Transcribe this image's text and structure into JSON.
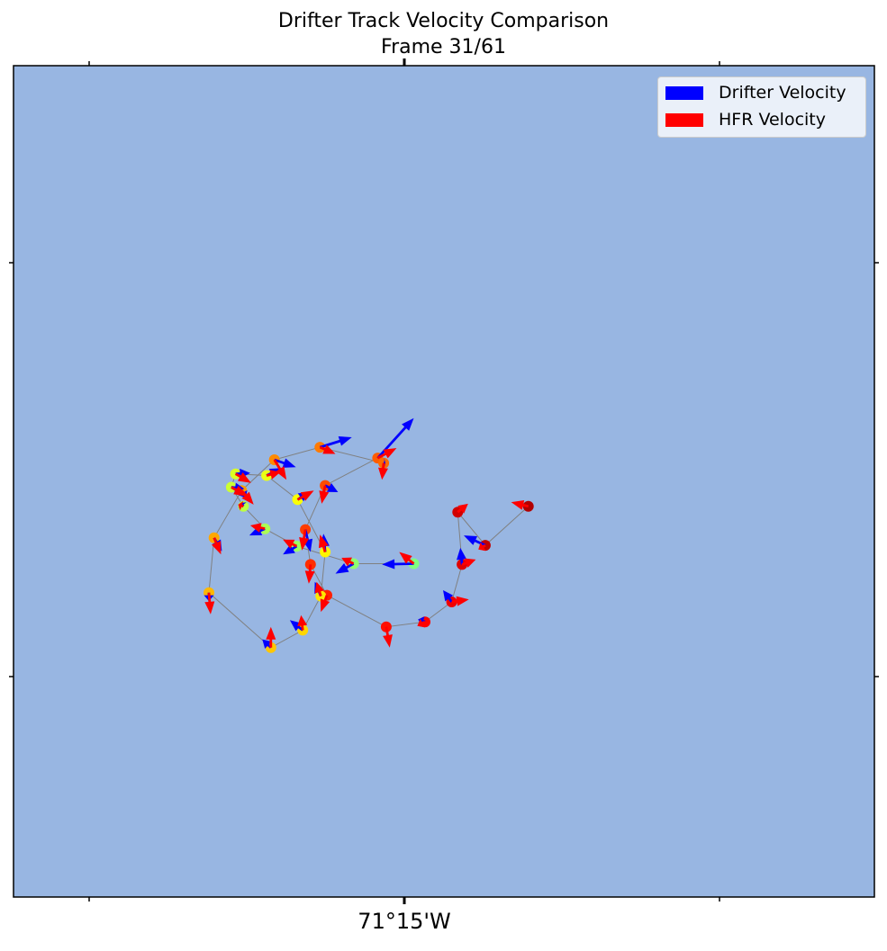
{
  "figure": {
    "title": "Drifter Track Velocity Comparison",
    "subtitle": "Frame 31/61",
    "xtick_label": "71°15'W",
    "ocean_color": "#98b6e2",
    "track_line_color": "#808080"
  },
  "legend": {
    "placement": "top-right",
    "items": [
      {
        "label": "Drifter Velocity",
        "color": "#0000ff"
      },
      {
        "label": "HFR Velocity",
        "color": "#ff0000"
      }
    ]
  },
  "chart_data": {
    "type": "scatter",
    "title": "Drifter Track Velocity Comparison",
    "subtitle": "Frame 31/61",
    "xlabel": "",
    "ylabel": "",
    "grid": false,
    "frame_current": 31,
    "frame_total": 61,
    "colormap": "jet",
    "track": [
      {
        "i": 0,
        "x": 0.598,
        "y": 0.53,
        "u_d": 0,
        "v_d": 0,
        "u_h": -0.02,
        "v_h": -0.005
      },
      {
        "i": 1,
        "x": 0.548,
        "y": 0.577,
        "u_d": -0.025,
        "v_d": -0.012,
        "u_h": -0.008,
        "v_h": 0.005
      },
      {
        "i": 2,
        "x": 0.516,
        "y": 0.537,
        "u_d": 0,
        "v_d": 0,
        "u_h": 0.012,
        "v_h": -0.01
      },
      {
        "i": 3,
        "x": 0.521,
        "y": 0.6,
        "u_d": -0.002,
        "v_d": -0.02,
        "u_h": 0.016,
        "v_h": -0.006
      },
      {
        "i": 4,
        "x": 0.509,
        "y": 0.645,
        "u_d": -0.01,
        "v_d": -0.014,
        "u_h": 0.02,
        "v_h": -0.003
      },
      {
        "i": 5,
        "x": 0.478,
        "y": 0.669,
        "u_d": -0.008,
        "v_d": -0.003,
        "u_h": -0.009,
        "v_h": 0.005
      },
      {
        "i": 6,
        "x": 0.433,
        "y": 0.675,
        "u_d": 0,
        "v_d": 0,
        "u_h": 0.004,
        "v_h": 0.025
      },
      {
        "i": 7,
        "x": 0.364,
        "y": 0.637,
        "u_d": 0,
        "v_d": 0,
        "u_h": -0.007,
        "v_h": 0.02
      },
      {
        "i": 8,
        "x": 0.345,
        "y": 0.6,
        "u_d": 0,
        "v_d": 0,
        "u_h": -0.002,
        "v_h": 0.023
      },
      {
        "i": 9,
        "x": 0.339,
        "y": 0.558,
        "u_d": 0.006,
        "v_d": 0.027,
        "u_h": -0.004,
        "v_h": 0.025
      },
      {
        "i": 10,
        "x": 0.362,
        "y": 0.505,
        "u_d": 0.015,
        "v_d": 0.008,
        "u_h": -0.004,
        "v_h": 0.022
      },
      {
        "i": 11,
        "x": 0.423,
        "y": 0.472,
        "u_d": 0.042,
        "v_d": -0.048,
        "u_h": 0.022,
        "v_h": -0.012
      },
      {
        "i": 12,
        "x": 0.43,
        "y": 0.478,
        "u_d": 0.002,
        "v_d": 0,
        "u_h": -0.002,
        "v_h": 0.02
      },
      {
        "i": 13,
        "x": 0.356,
        "y": 0.459,
        "u_d": 0.037,
        "v_d": -0.012,
        "u_h": 0.018,
        "v_h": 0.008
      },
      {
        "i": 14,
        "x": 0.303,
        "y": 0.474,
        "u_d": 0.025,
        "v_d": 0.009,
        "u_h": 0.014,
        "v_h": 0.024
      },
      {
        "i": 15,
        "x": 0.265,
        "y": 0.511,
        "u_d": 0.005,
        "v_d": 0.009,
        "u_h": 0.014,
        "v_h": 0.017
      },
      {
        "i": 16,
        "x": 0.233,
        "y": 0.568,
        "u_d": 0.009,
        "v_d": 0.016,
        "u_h": 0.008,
        "v_h": 0.02
      },
      {
        "i": 17,
        "x": 0.227,
        "y": 0.634,
        "u_d": 0,
        "v_d": 0.01,
        "u_h": 0.002,
        "v_h": 0.026
      },
      {
        "i": 18,
        "x": 0.299,
        "y": 0.7,
        "u_d": -0.01,
        "v_d": -0.01,
        "u_h": 0,
        "v_h": -0.025
      },
      {
        "i": 19,
        "x": 0.336,
        "y": 0.679,
        "u_d": -0.015,
        "v_d": -0.012,
        "u_h": -0.002,
        "v_h": -0.018
      },
      {
        "i": 20,
        "x": 0.357,
        "y": 0.638,
        "u_d": -0.007,
        "v_d": -0.017,
        "u_h": -0.005,
        "v_h": -0.017
      },
      {
        "i": 21,
        "x": 0.362,
        "y": 0.585,
        "u_d": -0.002,
        "v_d": -0.022,
        "u_h": -0.006,
        "v_h": -0.021
      },
      {
        "i": 22,
        "x": 0.33,
        "y": 0.522,
        "u_d": 0.012,
        "v_d": -0.009,
        "u_h": 0.019,
        "v_h": -0.011
      },
      {
        "i": 23,
        "x": 0.294,
        "y": 0.493,
        "u_d": 0.018,
        "v_d": -0.009,
        "u_h": 0.016,
        "v_h": -0.004
      },
      {
        "i": 24,
        "x": 0.258,
        "y": 0.491,
        "u_d": 0.017,
        "v_d": -0.001,
        "u_h": 0.018,
        "v_h": 0.011
      },
      {
        "i": 25,
        "x": 0.253,
        "y": 0.507,
        "u_d": 0.015,
        "v_d": 0.002,
        "u_h": 0.018,
        "v_h": 0.011
      },
      {
        "i": 26,
        "x": 0.267,
        "y": 0.53,
        "u_d": -0.003,
        "v_d": -0.004,
        "u_h": -0.006,
        "v_h": -0.002
      },
      {
        "i": 27,
        "x": 0.292,
        "y": 0.557,
        "u_d": -0.018,
        "v_d": 0.008,
        "u_h": -0.017,
        "v_h": -0.004
      },
      {
        "i": 28,
        "x": 0.329,
        "y": 0.578,
        "u_d": -0.016,
        "v_d": 0.01,
        "u_h": -0.016,
        "v_h": -0.008
      },
      {
        "i": 29,
        "x": 0.395,
        "y": 0.599,
        "u_d": -0.021,
        "v_d": 0.012,
        "u_h": -0.014,
        "v_h": -0.007
      },
      {
        "i": 30,
        "x": 0.465,
        "y": 0.599,
        "u_d": -0.037,
        "v_d": 0.001,
        "u_h": -0.017,
        "v_h": -0.014
      }
    ]
  }
}
